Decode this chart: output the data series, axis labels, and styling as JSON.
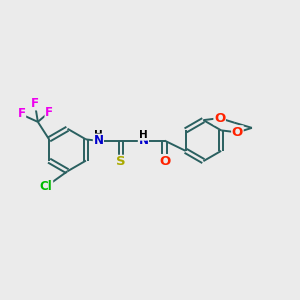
{
  "background_color": "#ebebeb",
  "atom_colors": {
    "C": "#000000",
    "N": "#0000cc",
    "O": "#ff2200",
    "S": "#aaaa00",
    "F": "#ee00ee",
    "Cl": "#00bb00",
    "H": "#000000"
  },
  "bond_color": "#2a6060",
  "bond_lw": 1.4,
  "font_size": 8.5,
  "fig_size": [
    3.0,
    3.0
  ],
  "dpi": 100,
  "xlim": [
    0,
    12
  ],
  "ylim": [
    0,
    10
  ]
}
